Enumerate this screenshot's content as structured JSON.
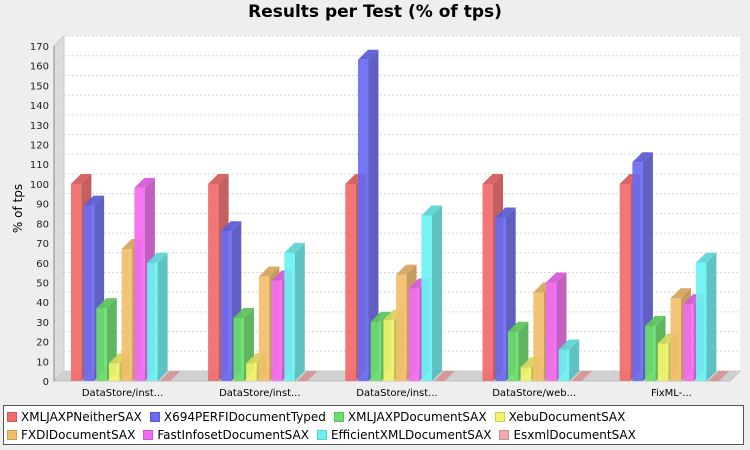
{
  "chart_data": {
    "type": "bar",
    "title": "Results per Test (% of tps)",
    "ylabel": "% of tps",
    "xlabel": "",
    "ylim": [
      0,
      170
    ],
    "yticks": [
      0,
      10,
      20,
      30,
      40,
      50,
      60,
      70,
      80,
      90,
      100,
      110,
      120,
      130,
      140,
      150,
      160,
      170
    ],
    "categories": [
      "DataStore/inst...",
      "DataStore/inst...",
      "DataStore/inst...",
      "DataStore/web...",
      "FixML-..."
    ],
    "grid": true,
    "legend_position": "bottom",
    "series": [
      {
        "name": "XMLJAXPNeitherSAX",
        "color": "#f26a6a",
        "values": [
          100,
          100,
          100,
          100,
          100
        ]
      },
      {
        "name": "X694PERFIDocumentTyped",
        "color": "#6a6af2",
        "values": [
          89,
          76,
          163,
          83,
          111
        ]
      },
      {
        "name": "XMLJAXPDocumentSAX",
        "color": "#6ae06a",
        "values": [
          37,
          32,
          30,
          25,
          28
        ]
      },
      {
        "name": "XebuDocumentSAX",
        "color": "#f2f26a",
        "values": [
          9,
          9,
          31,
          7,
          19
        ]
      },
      {
        "name": "FXDIDocumentSAX",
        "color": "#f2be6a",
        "values": [
          67,
          53,
          54,
          45,
          42
        ]
      },
      {
        "name": "FastInfosetDocumentSAX",
        "color": "#f26af2",
        "values": [
          98,
          51,
          47,
          50,
          39
        ]
      },
      {
        "name": "EfficientXMLDocumentSAX",
        "color": "#6af2f2",
        "values": [
          60,
          65,
          84,
          16,
          60
        ]
      },
      {
        "name": "EsxmlDocumentSAX",
        "color": "#f2aaaa",
        "values": [
          0,
          0,
          0,
          0,
          0
        ]
      }
    ]
  }
}
